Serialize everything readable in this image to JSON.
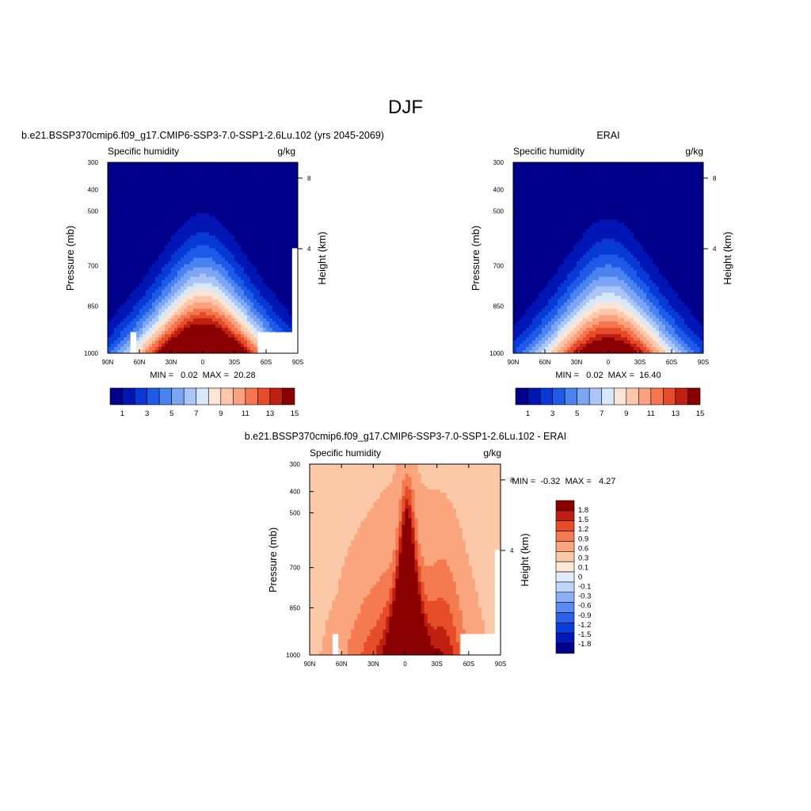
{
  "figure": {
    "title": "DJF"
  },
  "colors": {
    "abs_palette": [
      "#00008a",
      "#0016b4",
      "#0838d6",
      "#1d5ae8",
      "#4a82f0",
      "#7aa6f5",
      "#aac6f8",
      "#d6e8fa",
      "#fbe6d6",
      "#fcc7aa",
      "#fca27e",
      "#f6774f",
      "#e64b2a",
      "#c02010",
      "#8a0000"
    ],
    "diff_palette": [
      "#00008a",
      "#0018b8",
      "#0a3cd8",
      "#2a62e8",
      "#5a8af2",
      "#8cb0f6",
      "#bed4fa",
      "#e0ecfc",
      "#fde8d6",
      "#fbc9a8",
      "#fba57e",
      "#f67a50",
      "#e54d28",
      "#c01e10",
      "#8a0000"
    ],
    "missing": "#ffffff"
  },
  "chart_data": [
    {
      "type": "heatmap",
      "case_title": "b.e21.BSSP370cmip6.f09_g17.CMIP6-SSP3-7.0-SSP1-2.6Lu.102 (yrs 2045-2069)",
      "variable": "Specific humidity",
      "units": "g/kg",
      "ylabel": "Pressure (mb)",
      "y2label": "Height (km)",
      "x_ticks": [
        "90N",
        "60N",
        "30N",
        "0",
        "30S",
        "60S",
        "90S"
      ],
      "y_ticks": [
        "300",
        "400",
        "500",
        "700",
        "850",
        "1000"
      ],
      "y2_ticks": [
        "8",
        "4"
      ],
      "stats": "MIN =   0.02  MAX =  20.28",
      "colorbar_labels": [
        "1",
        "3",
        "5",
        "7",
        "9",
        "11",
        "13",
        "15"
      ],
      "x_range": [
        90,
        -90
      ],
      "y_range_mb": [
        300,
        1000
      ],
      "field": {
        "peak": 20.28,
        "min": 0.02
      }
    },
    {
      "type": "heatmap",
      "case_title": "ERAI",
      "variable": "Specific humidity",
      "units": "g/kg",
      "ylabel": "Pressure (mb)",
      "y2label": "Height (km)",
      "x_ticks": [
        "90N",
        "60N",
        "30N",
        "0",
        "30S",
        "60S",
        "90S"
      ],
      "y_ticks": [
        "300",
        "400",
        "500",
        "700",
        "850",
        "1000"
      ],
      "y2_ticks": [
        "8",
        "4"
      ],
      "stats": "MIN =   0.02  MAX =  16.40",
      "colorbar_labels": [
        "1",
        "3",
        "5",
        "7",
        "9",
        "11",
        "13",
        "15"
      ],
      "x_range": [
        90,
        -90
      ],
      "y_range_mb": [
        300,
        1000
      ],
      "field": {
        "peak": 16.4,
        "min": 0.02
      }
    },
    {
      "type": "heatmap",
      "case_title": "b.e21.BSSP370cmip6.f09_g17.CMIP6-SSP3-7.0-SSP1-2.6Lu.102 - ERAI",
      "variable": "Specific humidity",
      "units": "g/kg",
      "ylabel": "Pressure (mb)",
      "y2label": "Height (km)",
      "x_ticks": [
        "90N",
        "60N",
        "30N",
        "0",
        "30S",
        "60S",
        "90S"
      ],
      "y_ticks": [
        "300",
        "400",
        "500",
        "700",
        "850",
        "1000"
      ],
      "y2_ticks": [
        "8",
        "4"
      ],
      "stats": "MIN =  -0.32  MAX =   4.27",
      "colorbar_labels": [
        "1.8",
        "1.5",
        "1.2",
        "0.9",
        "0.6",
        "0.3",
        "0.1",
        "0",
        "-0.1",
        "-0.3",
        "-0.6",
        "-0.9",
        "-1.2",
        "-1.5",
        "-1.8"
      ],
      "x_range": [
        90,
        -90
      ],
      "y_range_mb": [
        300,
        1000
      ],
      "field": {
        "peak": 4.27,
        "min": -0.32
      }
    }
  ]
}
